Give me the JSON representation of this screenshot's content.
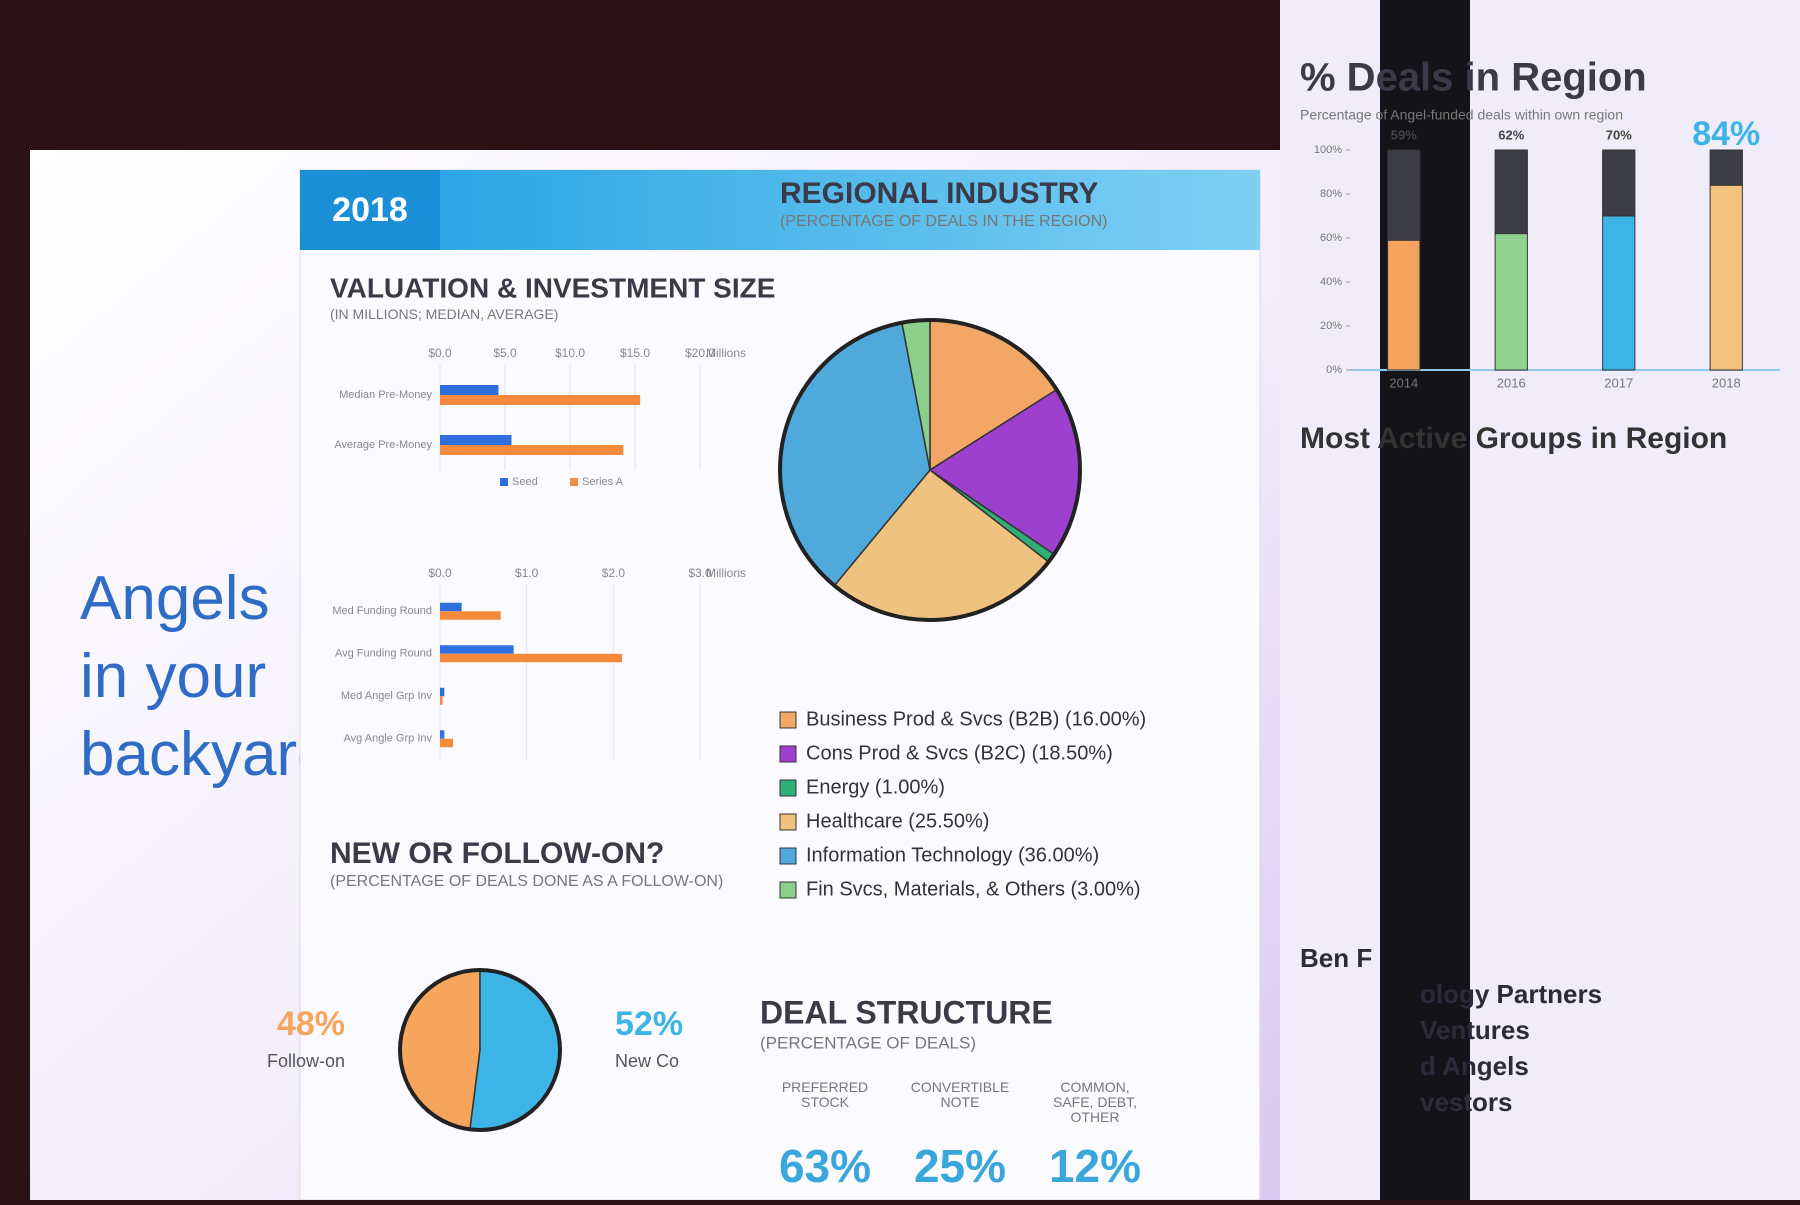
{
  "page": {
    "headline": "Angels in your backyard",
    "year": "2018",
    "groups_title": "Most Active Groups in Region",
    "groups": [
      "Ben F",
      "ology Partners",
      "Ventures",
      "d Angels",
      "vestors"
    ]
  },
  "chart_data": [
    {
      "type": "hbar",
      "title": "VALUATION & INVESTMENT SIZE",
      "subtitle": "(IN MILLIONS; MEDIAN, AVERAGE)",
      "x_label": "Millions",
      "categories": [
        "Median Pre-Money",
        "Average Pre-Money"
      ],
      "series": [
        {
          "name": "Seed",
          "color": "#2f6fe0",
          "values": [
            4.5,
            5.5
          ]
        },
        {
          "name": "Series A",
          "color": "#f58a3c",
          "values": [
            15.4,
            14.1
          ]
        }
      ],
      "xlim": [
        0,
        20
      ],
      "xticks": [
        {
          "value": 0,
          "label": "$0.0"
        },
        {
          "value": 5,
          "label": "$5.0"
        },
        {
          "value": 10,
          "label": "$10.0"
        },
        {
          "value": 15,
          "label": "$15.0"
        },
        {
          "value": 20,
          "label": "$20.0"
        }
      ],
      "grid": true
    },
    {
      "type": "hbar",
      "x_label": "Millions",
      "categories": [
        "Med Funding Round",
        "Avg Funding Round",
        "Med Angel Grp Inv",
        "Avg Angle Grp Inv"
      ],
      "series": [
        {
          "color": "#2f6fe0",
          "values": [
            0.25,
            0.85,
            0.05,
            0.05
          ]
        },
        {
          "color": "#f58a3c",
          "values": [
            0.7,
            2.1,
            0.03,
            0.15
          ]
        }
      ],
      "xlim": [
        0,
        3
      ],
      "xticks": [
        {
          "value": 0,
          "label": "$0.0"
        },
        {
          "value": 1,
          "label": "$1.0"
        },
        {
          "value": 2,
          "label": "$2.0"
        },
        {
          "value": 3,
          "label": "$3.0"
        }
      ],
      "grid": true
    },
    {
      "type": "pie",
      "title": "REGIONAL INDUSTRY",
      "subtitle": "(PERCENTAGE OF DEALS IN THE REGION)",
      "categories": [
        "Business Prod & Svcs (B2B) (16.00%)",
        "Cons Prod & Svcs (B2C) (18.50%)",
        "Energy (1.00%)",
        "Healthcare (25.50%)",
        "Information Technology (36.00%)",
        "Fin Svcs, Materials, & Others (3.00%)"
      ],
      "values": [
        16,
        18.5,
        1,
        25.5,
        36,
        3
      ],
      "colors": [
        "#f2a766",
        "#9d3fcf",
        "#2fae77",
        "#efc27f",
        "#4fa9db",
        "#8bcf8b"
      ],
      "legend": "bottom"
    },
    {
      "type": "pie",
      "title": "NEW OR FOLLOW-ON?",
      "subtitle": "(PERCENTAGE OF DEALS DONE AS A FOLLOW-ON)",
      "categories": [
        "Follow-on",
        "New Co"
      ],
      "values": [
        48,
        52
      ],
      "value_labels": [
        "48%",
        "52%"
      ],
      "colors": [
        "#f7a45c",
        "#3db4e6"
      ]
    },
    {
      "type": "stat",
      "title": "DEAL STRUCTURE",
      "subtitle": "(PERCENTAGE OF DEALS)",
      "categories": [
        "PREFERRED STOCK",
        "CONVERTIBLE NOTE",
        "COMMON, SAFE, DEBT, OTHER"
      ],
      "values": [
        63,
        25,
        12
      ],
      "value_labels": [
        "63%",
        "25%",
        "12%"
      ],
      "color": "#3aa7dc"
    },
    {
      "type": "stackbar",
      "title": "% Deals in Region",
      "subtitle": "Percentage of Angel-funded deals within own region",
      "categories": [
        "2014",
        "2016",
        "2017",
        "2018"
      ],
      "series": [
        {
          "values": [
            59,
            62,
            70,
            84
          ],
          "value_labels": [
            "59%",
            "62%",
            "70%",
            "84%"
          ],
          "colors": [
            "#f5a45e",
            "#8fd28f",
            "#3db4e6",
            "#f3c27c"
          ]
        },
        {
          "values": [
            41,
            38,
            30,
            16
          ],
          "color": "#3d3d45"
        }
      ],
      "ylim": [
        0,
        100
      ],
      "yticks": [
        {
          "value": 0,
          "label": "0%"
        },
        {
          "value": 20,
          "label": "20%"
        },
        {
          "value": 40,
          "label": "40%"
        },
        {
          "value": 60,
          "label": "60%"
        },
        {
          "value": 80,
          "label": "80%"
        },
        {
          "value": 100,
          "label": "100%"
        }
      ]
    }
  ]
}
